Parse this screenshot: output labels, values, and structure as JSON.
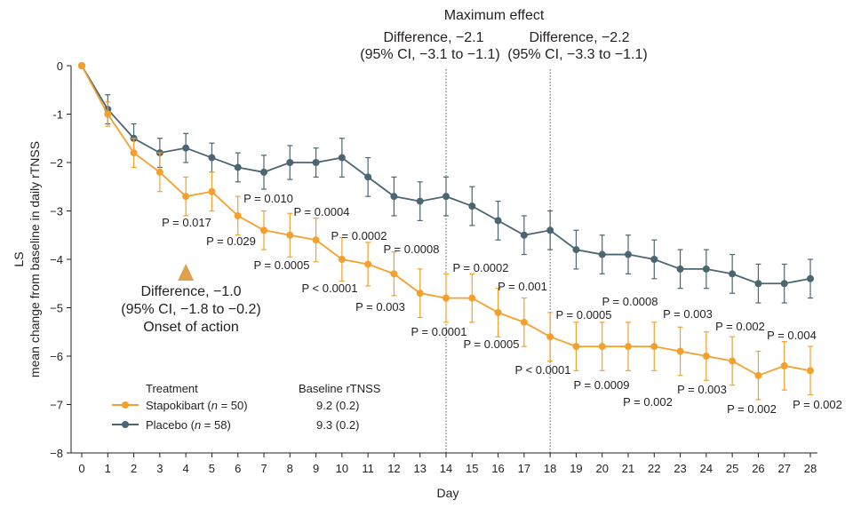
{
  "chart_data": {
    "type": "line",
    "xlabel": "Day",
    "ylabel_line1": "LS",
    "ylabel_line2": "mean change from baseline in daily rTNSS",
    "xlim": [
      0,
      28
    ],
    "ylim": [
      -8,
      0
    ],
    "x_ticks": [
      0,
      1,
      2,
      3,
      4,
      5,
      6,
      7,
      8,
      9,
      10,
      11,
      12,
      13,
      14,
      15,
      16,
      17,
      18,
      19,
      20,
      21,
      22,
      23,
      24,
      25,
      26,
      27,
      28
    ],
    "y_ticks": [
      0,
      -1,
      -2,
      -3,
      -4,
      -5,
      -6,
      -7,
      -8
    ],
    "y_tick_labels": [
      "0",
      "-1",
      "−2",
      "−3",
      "−4",
      "−5",
      "−6",
      "−7",
      "−8"
    ],
    "series": [
      {
        "name": "Stapokibart",
        "n": "50",
        "baseline": "9.2 (0.2)",
        "color": "#f5a02c",
        "x": [
          0,
          1,
          2,
          3,
          4,
          5,
          6,
          7,
          8,
          9,
          10,
          11,
          12,
          13,
          14,
          15,
          16,
          17,
          18,
          19,
          20,
          21,
          22,
          23,
          24,
          25,
          26,
          27,
          28
        ],
        "values": [
          0,
          -1.0,
          -1.8,
          -2.2,
          -2.7,
          -2.6,
          -3.1,
          -3.4,
          -3.5,
          -3.6,
          -4.0,
          -4.1,
          -4.3,
          -4.7,
          -4.8,
          -4.8,
          -5.1,
          -5.3,
          -5.6,
          -5.8,
          -5.8,
          -5.8,
          -5.8,
          -5.9,
          -6.0,
          -6.1,
          -6.4,
          -6.2,
          -6.3
        ],
        "errors": [
          0,
          0.25,
          0.3,
          0.4,
          0.4,
          0.4,
          0.4,
          0.4,
          0.45,
          0.45,
          0.45,
          0.45,
          0.45,
          0.5,
          0.5,
          0.5,
          0.5,
          0.5,
          0.5,
          0.5,
          0.5,
          0.5,
          0.5,
          0.5,
          0.5,
          0.5,
          0.5,
          0.5,
          0.5
        ]
      },
      {
        "name": "Placebo",
        "n": "58",
        "baseline": "9.3 (0.2)",
        "color": "#4b6670",
        "x": [
          0,
          1,
          2,
          3,
          4,
          5,
          6,
          7,
          8,
          9,
          10,
          11,
          12,
          13,
          14,
          15,
          16,
          17,
          18,
          19,
          20,
          21,
          22,
          23,
          24,
          25,
          26,
          27,
          28
        ],
        "values": [
          0,
          -0.9,
          -1.5,
          -1.8,
          -1.7,
          -1.9,
          -2.1,
          -2.2,
          -2.0,
          -2.0,
          -1.9,
          -2.3,
          -2.7,
          -2.8,
          -2.7,
          -2.9,
          -3.2,
          -3.5,
          -3.4,
          -3.8,
          -3.9,
          -3.9,
          -4.0,
          -4.2,
          -4.2,
          -4.3,
          -4.5,
          -4.5,
          -4.4
        ],
        "errors": [
          0,
          0.3,
          0.3,
          0.3,
          0.3,
          0.3,
          0.3,
          0.35,
          0.35,
          0.3,
          0.4,
          0.4,
          0.4,
          0.4,
          0.4,
          0.4,
          0.4,
          0.4,
          0.4,
          0.4,
          0.4,
          0.4,
          0.4,
          0.4,
          0.4,
          0.4,
          0.4,
          0.4,
          0.4
        ]
      }
    ],
    "legend": {
      "treatment_header": "Treatment",
      "baseline_header": "Baseline rTNSS",
      "placement": "bottom-left"
    },
    "p_values": [
      {
        "day": 4,
        "text": "P = 0.017"
      },
      {
        "day": 6,
        "text": "P = 0.029"
      },
      {
        "day": 7,
        "text": "P = 0.010"
      },
      {
        "day": 8,
        "text": "P = 0.0005"
      },
      {
        "day": 9,
        "text": "P = 0.0004"
      },
      {
        "day": 10,
        "text": "P < 0.0001"
      },
      {
        "day": 11,
        "text": "P = 0.0002"
      },
      {
        "day": 12,
        "text": "P = 0.003"
      },
      {
        "day": 13,
        "text": "P = 0.0008"
      },
      {
        "day": 14,
        "text": "P = 0.0001"
      },
      {
        "day": 15,
        "text": "P = 0.0002"
      },
      {
        "day": 16,
        "text": "P = 0.0005"
      },
      {
        "day": 17,
        "text": "P = 0.001"
      },
      {
        "day": 18,
        "text": "P < 0.0001"
      },
      {
        "day": 19,
        "text": "P = 0.0005"
      },
      {
        "day": 20,
        "text": "P = 0.0009"
      },
      {
        "day": 21,
        "text": "P = 0.0008"
      },
      {
        "day": 22,
        "text": "P = 0.002"
      },
      {
        "day": 23,
        "text": "P = 0.003"
      },
      {
        "day": 24,
        "text": "P = 0.003"
      },
      {
        "day": 25,
        "text": "P = 0.002"
      },
      {
        "day": 26,
        "text": "P = 0.002"
      },
      {
        "day": 27,
        "text": "P = 0.004"
      },
      {
        "day": 28,
        "text": "P = 0.002"
      }
    ],
    "annotations": {
      "max_effect_title": "Maximum effect",
      "diff_day14_line1": "Difference, −2.1",
      "diff_day14_line2": "(95% CI, −3.1 to −1.1)",
      "diff_day18_line1": "Difference, −2.2",
      "diff_day18_line2": "(95% CI, −3.3 to −1.1)",
      "onset_line1": "Difference, −1.0",
      "onset_line2": "(95% CI, −1.8 to −0.2)",
      "onset_line3": "Onset of action",
      "vlines_days": [
        14,
        18
      ],
      "onset_marker_day": 4
    }
  }
}
